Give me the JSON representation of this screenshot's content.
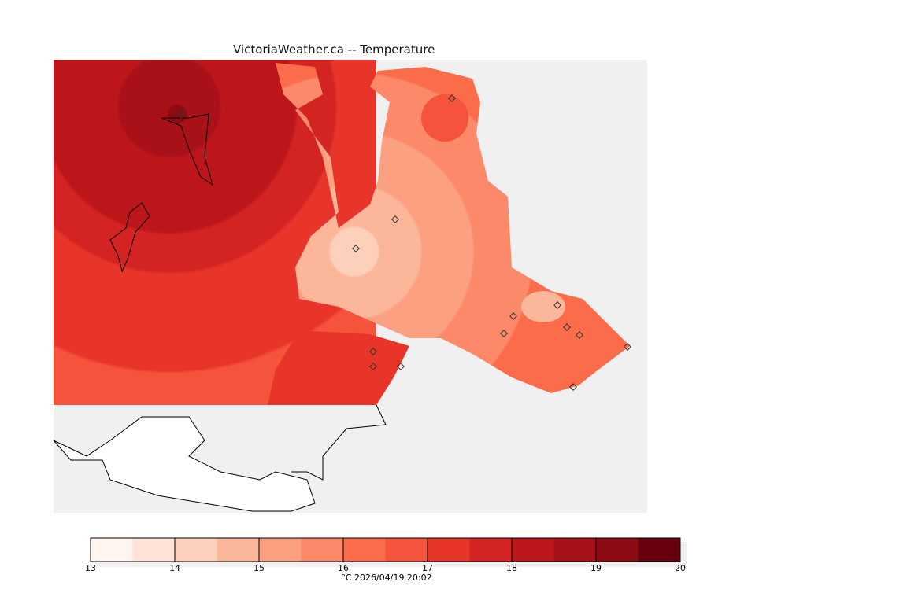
{
  "title": "VictoriaWeather.ca -- Temperature",
  "colorbar": {
    "ticks": [
      "13",
      "14",
      "15",
      "16",
      "17",
      "18",
      "19",
      "20"
    ],
    "caption": "°C  2026/04/19 20:02",
    "colors": [
      "#fff5ee",
      "#fee4d8",
      "#fdd0bb",
      "#fcb69a",
      "#fca082",
      "#fc8a6a",
      "#fb6c4b",
      "#f5533c",
      "#e93529",
      "#d32322",
      "#bc161b",
      "#a81118",
      "#8c0c14",
      "#67000d"
    ]
  },
  "colors": {
    "background": "#f0f0f0",
    "land_outside": "#ffffff"
  }
}
